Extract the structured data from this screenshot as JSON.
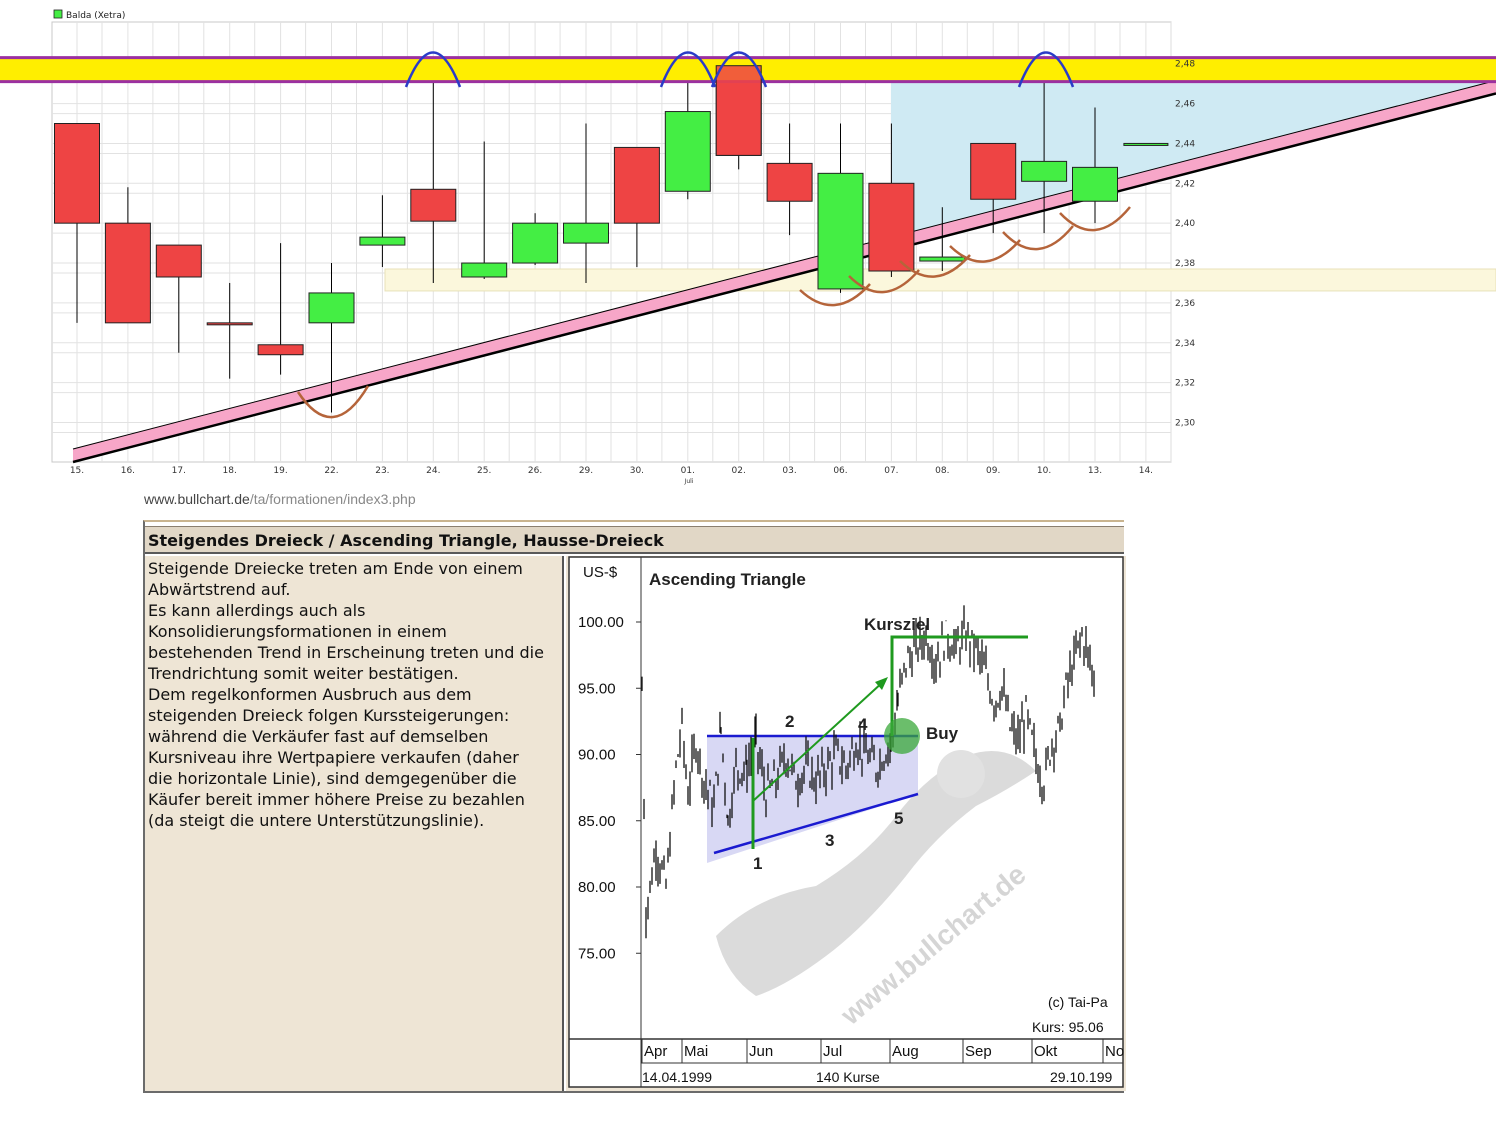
{
  "chart_data": [
    {
      "type": "candlestick",
      "legend": "Balda (Xetra)",
      "ylim": [
        2.28,
        2.49
      ],
      "y_ticks": [
        "2,30",
        "2,32",
        "2,34",
        "2,36",
        "2,38",
        "2,40",
        "2,42",
        "2,44",
        "2,46",
        "2,48"
      ],
      "x_labels": [
        "15.",
        "16.",
        "17.",
        "18.",
        "19.",
        "22.",
        "23.",
        "24.",
        "25.",
        "26.",
        "29.",
        "30.",
        "01.",
        "02.",
        "03.",
        "06.",
        "07.",
        "08.",
        "09.",
        "10.",
        "13.",
        "14."
      ],
      "month_label": "Juli",
      "candles": [
        {
          "open": 2.45,
          "high": 2.45,
          "low": 2.35,
          "close": 2.4
        },
        {
          "open": 2.4,
          "high": 2.418,
          "low": 2.35,
          "close": 2.35
        },
        {
          "open": 2.389,
          "high": 2.389,
          "low": 2.335,
          "close": 2.373
        },
        {
          "open": 2.35,
          "high": 2.37,
          "low": 2.322,
          "close": 2.349
        },
        {
          "open": 2.339,
          "high": 2.39,
          "low": 2.324,
          "close": 2.334
        },
        {
          "open": 2.35,
          "high": 2.38,
          "low": 2.305,
          "close": 2.365
        },
        {
          "open": 2.389,
          "high": 2.414,
          "low": 2.378,
          "close": 2.393
        },
        {
          "open": 2.417,
          "high": 2.478,
          "low": 2.37,
          "close": 2.401
        },
        {
          "open": 2.373,
          "high": 2.441,
          "low": 2.372,
          "close": 2.38
        },
        {
          "open": 2.38,
          "high": 2.405,
          "low": 2.379,
          "close": 2.4
        },
        {
          "open": 2.39,
          "high": 2.45,
          "low": 2.37,
          "close": 2.4
        },
        {
          "open": 2.438,
          "high": 2.438,
          "low": 2.378,
          "close": 2.4
        },
        {
          "open": 2.416,
          "high": 2.478,
          "low": 2.412,
          "close": 2.456
        },
        {
          "open": 2.479,
          "high": 2.479,
          "low": 2.427,
          "close": 2.434
        },
        {
          "open": 2.43,
          "high": 2.45,
          "low": 2.394,
          "close": 2.411
        },
        {
          "open": 2.367,
          "high": 2.45,
          "low": 2.365,
          "close": 2.425
        },
        {
          "open": 2.42,
          "high": 2.45,
          "low": 2.373,
          "close": 2.376
        },
        {
          "open": 2.381,
          "high": 2.408,
          "low": 2.376,
          "close": 2.383
        },
        {
          "open": 2.44,
          "high": 2.44,
          "low": 2.395,
          "close": 2.412
        },
        {
          "open": 2.421,
          "high": 2.478,
          "low": 2.395,
          "close": 2.431
        },
        {
          "open": 2.411,
          "high": 2.458,
          "low": 2.4,
          "close": 2.428
        },
        {
          "open": 2.44,
          "high": 2.44,
          "low": 2.44,
          "close": 2.44
        }
      ],
      "resistance_level": 2.477,
      "support_zone": [
        2.366,
        2.377
      ],
      "colors": {
        "up": "#44ee44",
        "down": "#ee4444",
        "resistance": "#ffee00",
        "resistance_border": "#9b30a0",
        "trend_band": "#f7a6c8",
        "triangle_fill": "#cfeaf3",
        "support_fill": "#fbf7dc",
        "tops": "#2a3cc8",
        "bottoms": "#b5643a"
      }
    },
    {
      "type": "line",
      "title": "Ascending Triangle",
      "y_unit": "US-$",
      "y_ticks": [
        "100.00",
        "95.00",
        "90.00",
        "85.00",
        "80.00",
        "75.00"
      ],
      "x_months": [
        "Apr",
        "Mai",
        "Jun",
        "Jul",
        "Aug",
        "Sep",
        "Okt",
        "No"
      ],
      "start_date": "14.04.1999",
      "end_date": "29.10.199",
      "count_label": "140 Kurse",
      "copyright": "(c) Tai-Pa",
      "last_price": "Kurs:  95.06",
      "annotations": [
        "Kursziel",
        "Buy",
        "1",
        "2",
        "3",
        "4",
        "5"
      ],
      "watermark": "www.bullchart.de"
    }
  ],
  "source_url": {
    "host": "www.bullchart.de",
    "path": "/ta/formationen/index3.php"
  },
  "panel": {
    "title": "Steigendes Dreieck / Ascending Triangle, Hausse-Dreieck",
    "lines": [
      "Steigende Dreiecke treten am Ende von einem",
      "Abwärtstrend auf.",
      "Es kann allerdings auch als",
      "Konsolidierungsformationen in einem",
      "bestehenden Trend in Erscheinung treten und die",
      "Trendrichtung somit weiter bestätigen.",
      "Dem regelkonformen Ausbruch aus dem",
      "steigenden Dreieck folgen Kurssteigerungen:",
      "während die Verkäufer fast auf demselben",
      "Kursniveau ihre Wertpapiere verkaufen (daher",
      "die horizontale Linie), sind demgegenüber die",
      "Käufer bereit immer höhere Preise zu bezahlen",
      "(da steigt die untere Unterstützungslinie)."
    ]
  }
}
